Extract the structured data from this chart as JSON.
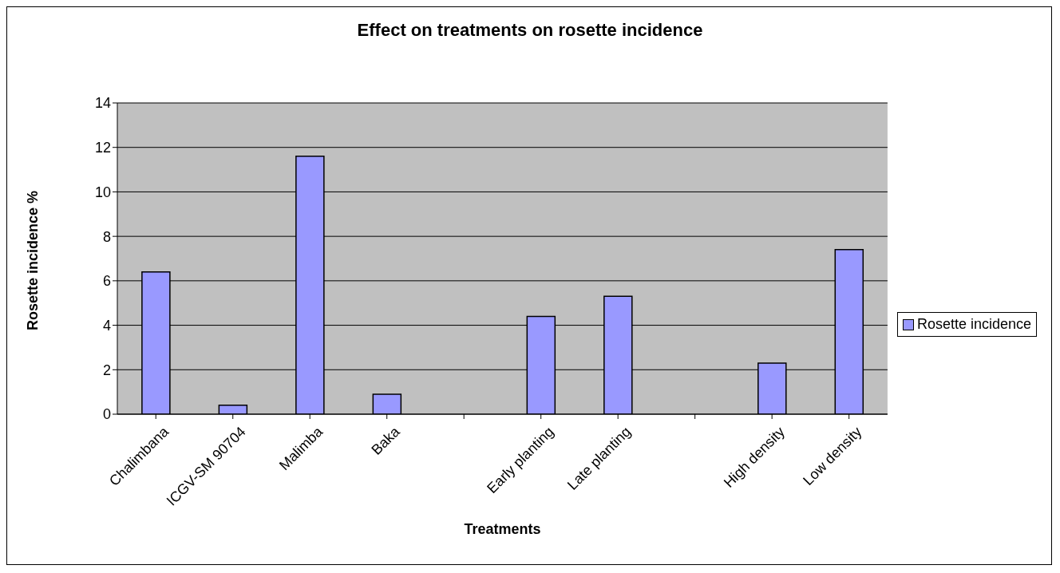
{
  "chart_data": {
    "type": "bar",
    "title": "Effect on treatments on rosette incidence",
    "xlabel": "Treatments",
    "ylabel": "Rosette incidence %",
    "categories": [
      "Chalimbana",
      "ICGV-SM 90704",
      "Malimba",
      "Baka",
      null,
      "Early planting",
      "Late planting",
      null,
      "High density",
      "Low density"
    ],
    "series": [
      {
        "name": "Rosette incidence",
        "color": "#9999ff",
        "values": [
          6.4,
          0.4,
          11.6,
          0.9,
          null,
          4.4,
          5.3,
          null,
          2.3,
          7.4
        ]
      }
    ],
    "ylim": [
      0,
      14
    ],
    "yticks": [
      0,
      2,
      4,
      6,
      8,
      10,
      12,
      14
    ],
    "grid": "y",
    "legend": "right"
  }
}
